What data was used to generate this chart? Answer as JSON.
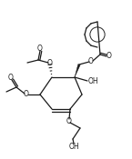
{
  "background": "#ffffff",
  "line_color": "#1a1a1a",
  "line_width": 0.9,
  "fig_width": 1.45,
  "fig_height": 1.75,
  "dpi": 100,
  "xlim": [
    0,
    145
  ],
  "ylim": [
    0,
    175
  ]
}
